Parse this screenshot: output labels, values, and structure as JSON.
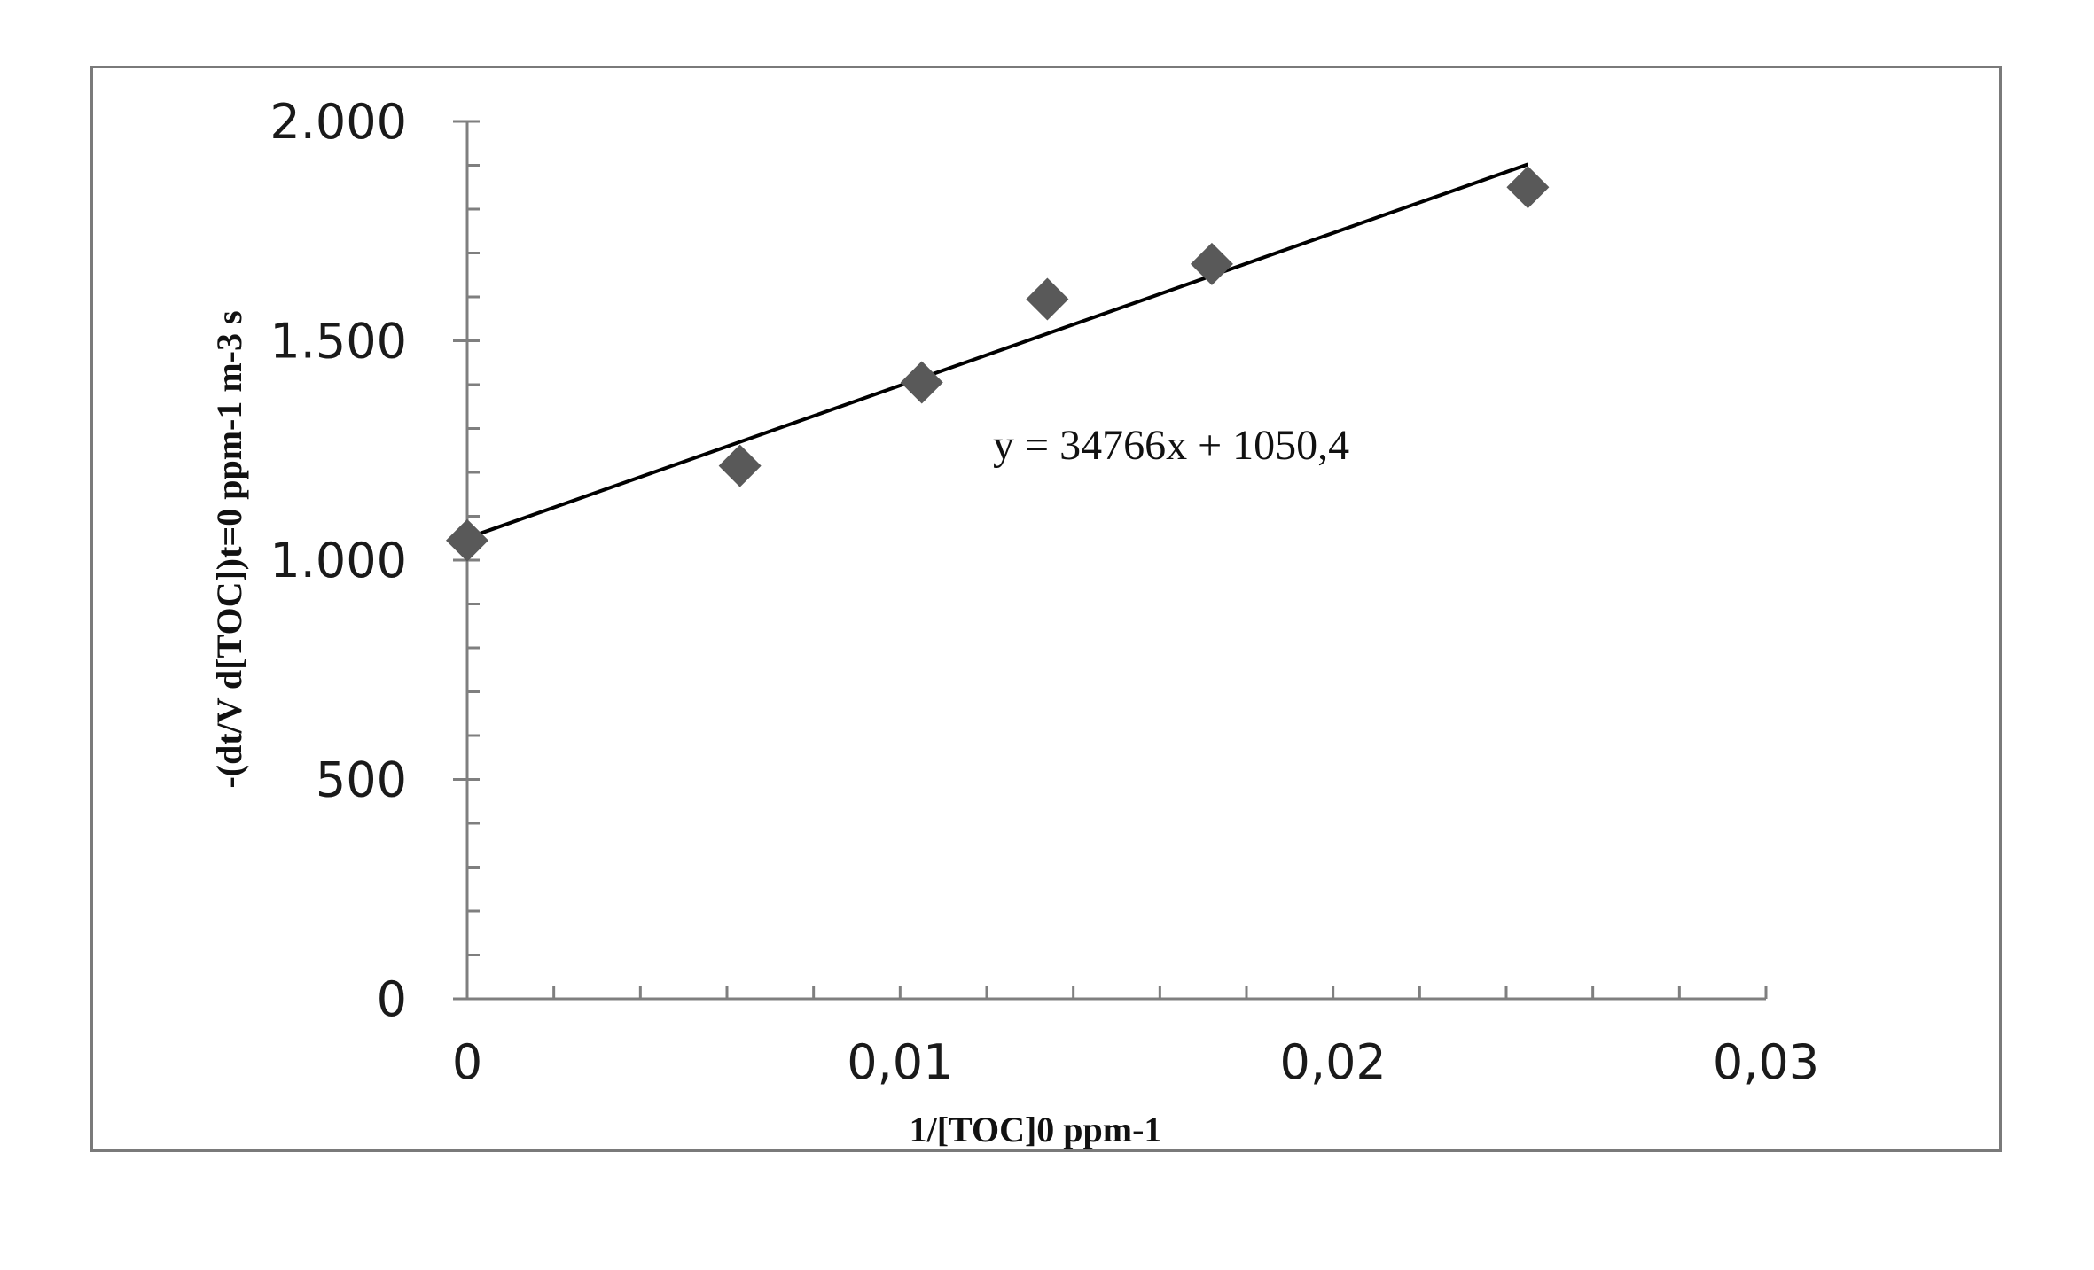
{
  "chart_data": {
    "type": "scatter",
    "xlabel": "1/[TOC]0  ppm-1",
    "ylabel": "-(dt/V d[TOC])t=0  ppm-1 m-3 s",
    "xlim": [
      0,
      0.03
    ],
    "ylim": [
      0,
      2000
    ],
    "x_ticks": [
      0,
      0.01,
      0.02,
      0.03
    ],
    "x_tick_labels": [
      "0",
      "0,01",
      "0,02",
      "0,03"
    ],
    "y_ticks": [
      0,
      500,
      1000,
      1500,
      2000
    ],
    "y_tick_labels": [
      "0",
      "500",
      "1.000",
      "1.500",
      "2.000"
    ],
    "x_minor_step": 0.002,
    "y_minor_step": 100,
    "marker": "diamond",
    "marker_color": "#595959",
    "line_color": "#000000",
    "series": [
      {
        "x": [
          0,
          0.0063,
          0.0105,
          0.0134,
          0.0172,
          0.0245
        ],
        "y": [
          1045,
          1215,
          1405,
          1595,
          1675,
          1850
        ]
      }
    ],
    "trendline": {
      "slope": 34766,
      "intercept": 1050.4,
      "x_range": [
        0,
        0.0245
      ],
      "equation_label": "y = 34766x + 1050,4"
    },
    "grid": false,
    "legend": "none"
  }
}
